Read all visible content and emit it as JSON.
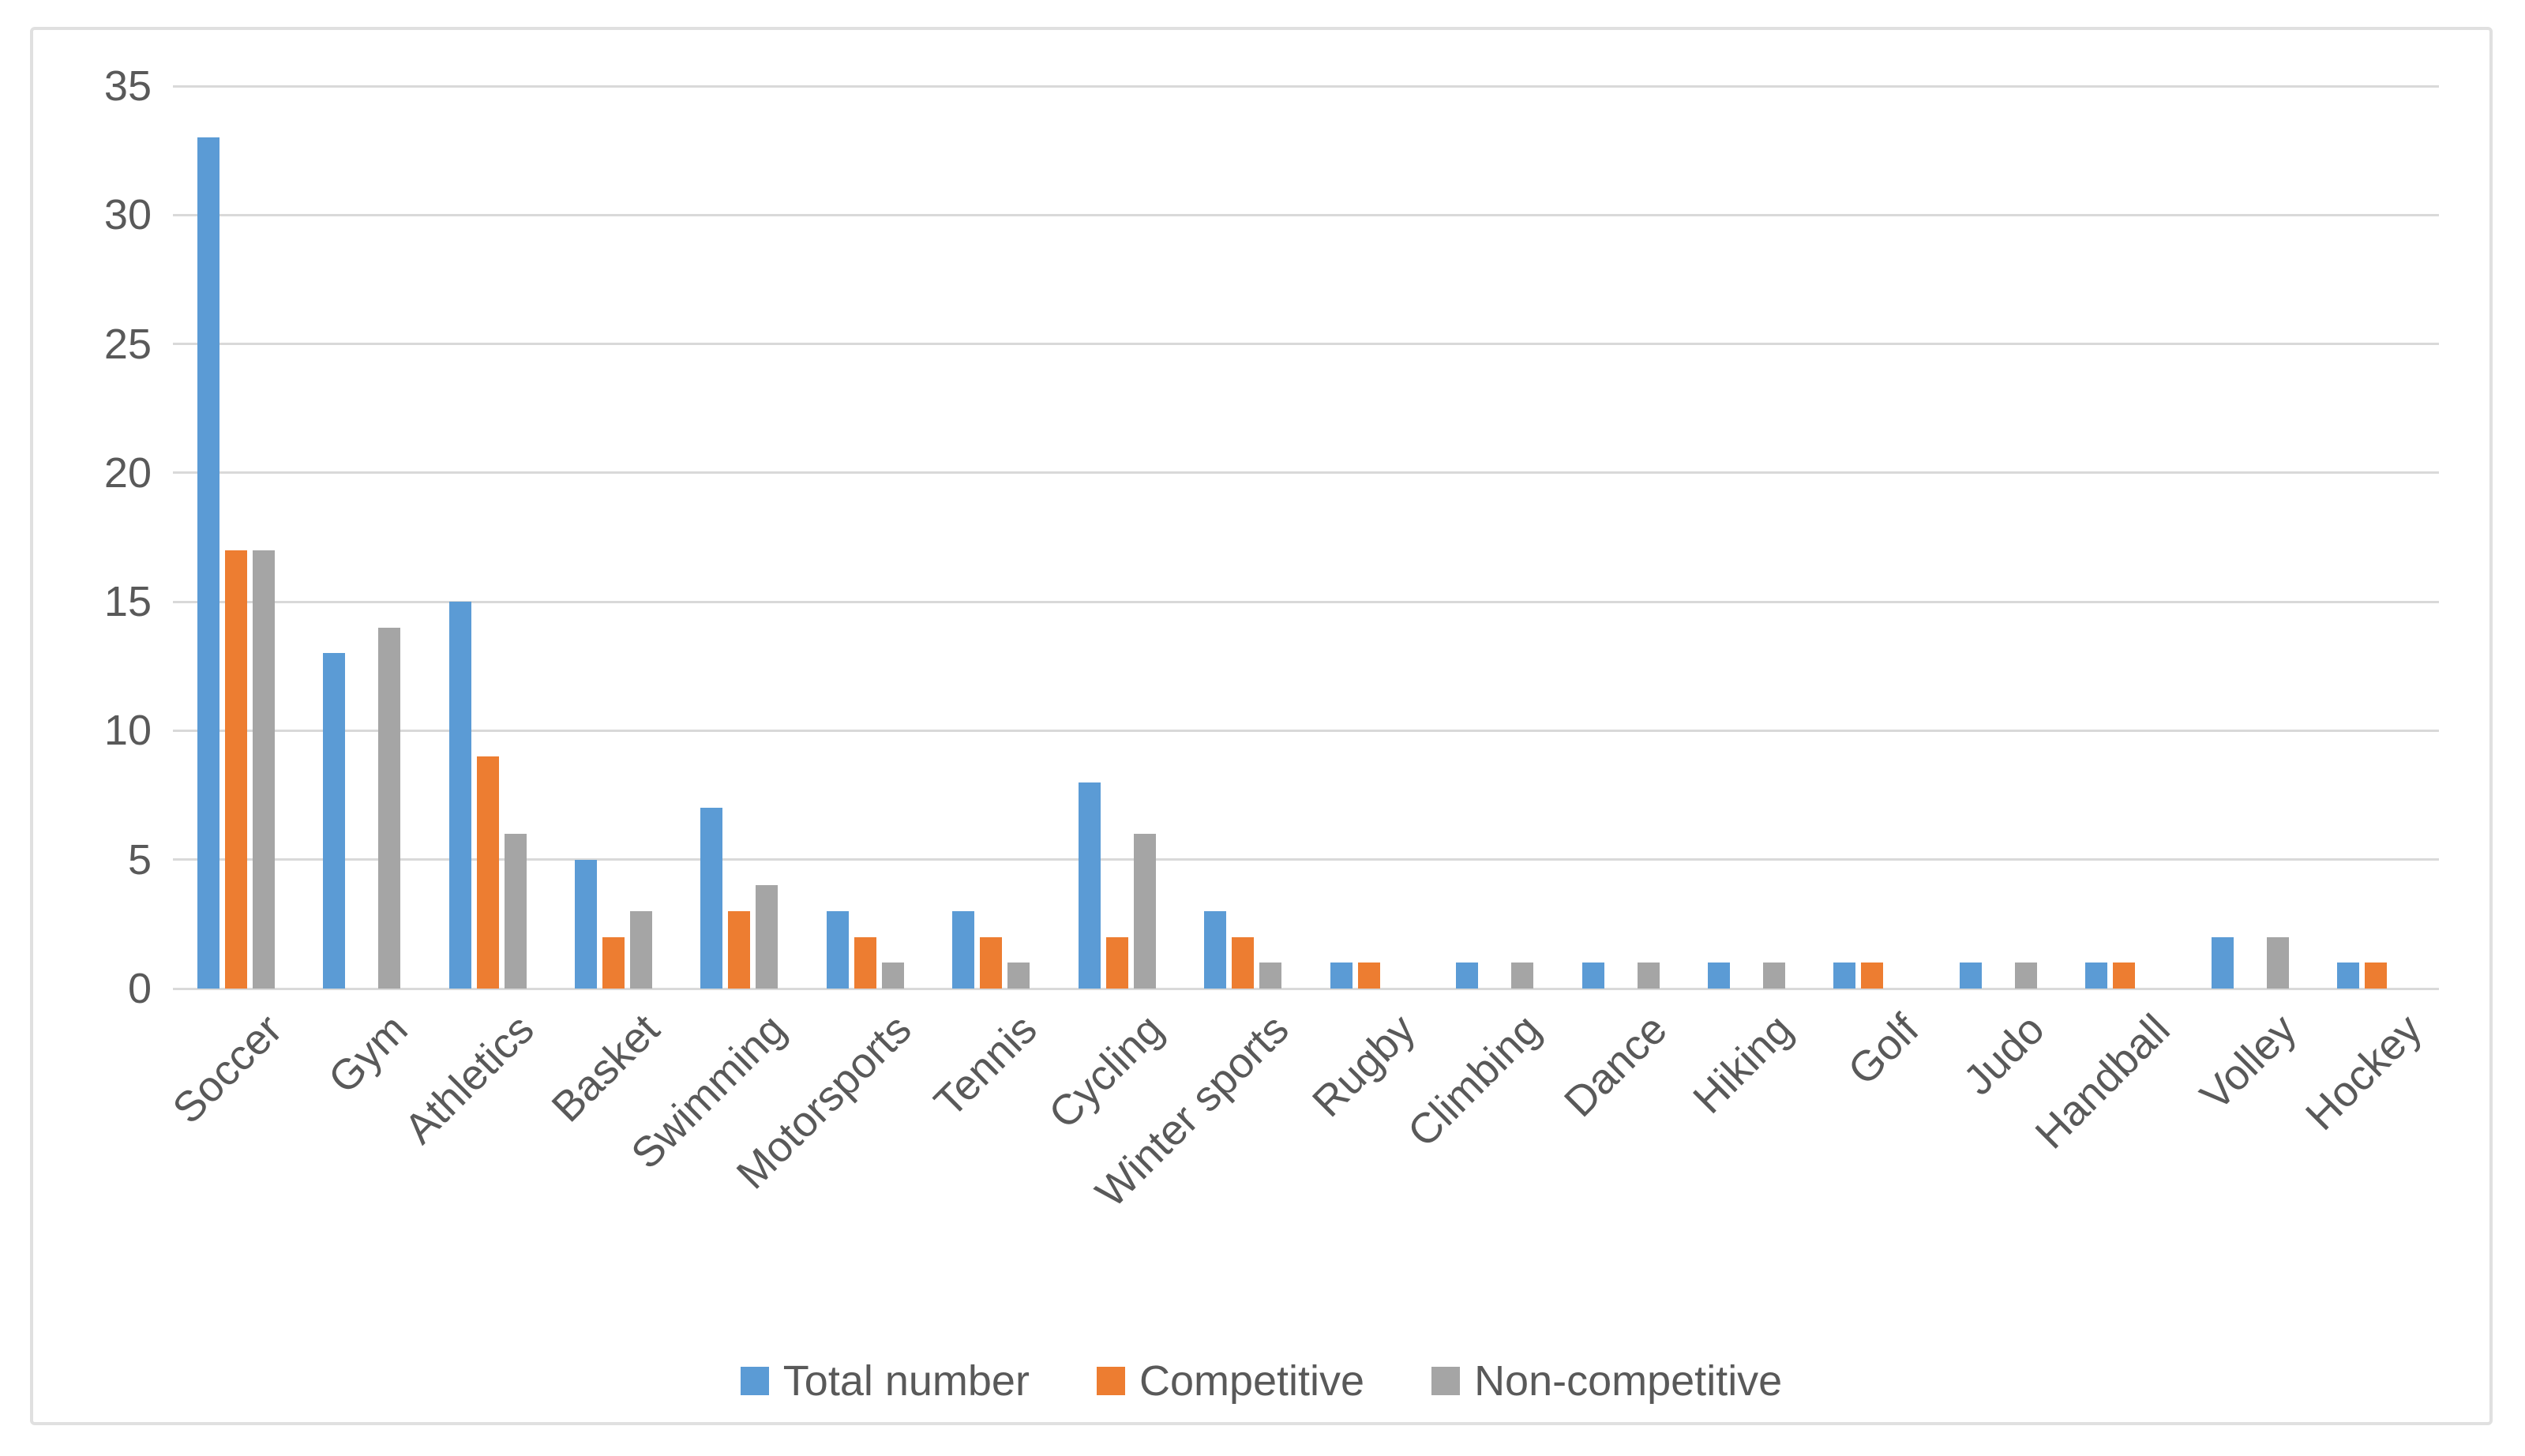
{
  "chart_data": {
    "type": "bar",
    "title": "",
    "categories": [
      "Soccer",
      "Gym",
      "Athletics",
      "Basket",
      "Swimming",
      "Motorsports",
      "Tennis",
      "Cycling",
      "Winter sports",
      "Rugby",
      "Climbing",
      "Dance",
      "Hiking",
      "Golf",
      "Judo",
      "Handball",
      "Volley",
      "Hockey"
    ],
    "series": [
      {
        "name": "Total number",
        "color": "#5B9BD5",
        "values": [
          33,
          13,
          15,
          5,
          7,
          3,
          3,
          8,
          3,
          1,
          1,
          1,
          1,
          1,
          1,
          1,
          2,
          1
        ]
      },
      {
        "name": "Competitive",
        "color": "#ED7D31",
        "values": [
          17,
          0,
          9,
          2,
          3,
          2,
          2,
          2,
          2,
          1,
          0,
          0,
          0,
          1,
          0,
          1,
          0,
          1
        ]
      },
      {
        "name": "Non-competitive",
        "color": "#A5A5A5",
        "values": [
          17,
          14,
          6,
          3,
          4,
          1,
          1,
          6,
          1,
          0,
          1,
          1,
          1,
          0,
          1,
          0,
          2,
          0
        ]
      }
    ],
    "ylim": [
      0,
      35
    ],
    "yticks": [
      35,
      30,
      25,
      20,
      15,
      10,
      5,
      0
    ],
    "grid": true,
    "legend_position": "bottom",
    "xlabel": "",
    "ylabel": ""
  },
  "colors": {
    "series_blue": "#5B9BD5",
    "series_orange": "#ED7D31",
    "series_gray": "#A5A5A5",
    "gridline": "#D9D9D9",
    "axis_text": "#595959",
    "frame_border": "#E0E0E0",
    "background": "#FFFFFF"
  }
}
